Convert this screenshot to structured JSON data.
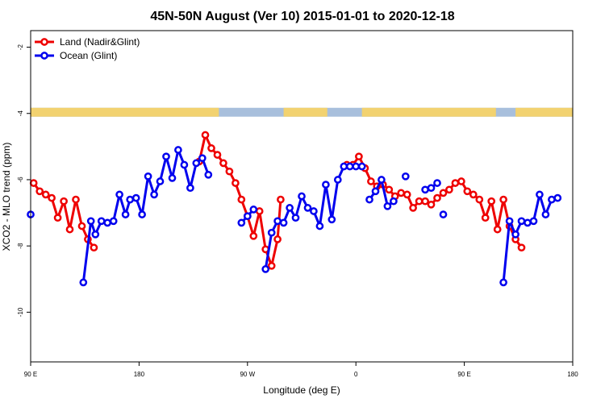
{
  "chart_data": {
    "type": "line",
    "title": "45N-50N August (Ver 10)   2015-01-01 to 2020-12-18",
    "xlabel": "Longitude (deg E)",
    "ylabel": "XCO2 - MLO trend (ppm)",
    "xlim": [
      90,
      450
    ],
    "ylim": [
      -11.5,
      -1.5
    ],
    "x_ticks": [
      {
        "value": 90,
        "label": "90 E"
      },
      {
        "value": 162,
        "label": "180"
      },
      {
        "value": 234,
        "label": "90 W"
      },
      {
        "value": 306,
        "label": "0"
      },
      {
        "value": 378,
        "label": "90 E"
      },
      {
        "value": 450,
        "label": "180"
      }
    ],
    "y_ticks": [
      {
        "value": -2,
        "label": "-2"
      },
      {
        "value": -4,
        "label": "-4"
      },
      {
        "value": -6,
        "label": "-6"
      },
      {
        "value": -8,
        "label": "-8"
      },
      {
        "value": -10,
        "label": "-10"
      }
    ],
    "grid": false,
    "legend_position": "top-left",
    "series": [
      {
        "name": "Land (Nadir&Glint)",
        "color": "#ee0000",
        "segments": [
          [
            [
              92,
              -6.1
            ],
            [
              96,
              -6.35
            ],
            [
              100,
              -6.45
            ],
            [
              104,
              -6.55
            ],
            [
              108,
              -7.15
            ],
            [
              112,
              -6.65
            ],
            [
              116,
              -7.5
            ],
            [
              120,
              -6.6
            ],
            [
              124,
              -7.4
            ],
            [
              128,
              -7.8
            ],
            [
              132,
              -8.05
            ]
          ],
          [
            [
              202,
              -5.45
            ],
            [
              206,
              -4.65
            ],
            [
              210,
              -5.05
            ],
            [
              214,
              -5.25
            ],
            [
              218,
              -5.5
            ],
            [
              222,
              -5.75
            ],
            [
              226,
              -6.1
            ],
            [
              230,
              -6.6
            ],
            [
              234,
              -7.1
            ],
            [
              238,
              -7.7
            ],
            [
              242,
              -6.95
            ],
            [
              246,
              -8.1
            ],
            [
              250,
              -8.6
            ],
            [
              254,
              -7.8
            ],
            [
              256,
              -6.6
            ]
          ],
          [
            [
              300,
              -5.55
            ],
            [
              304,
              -5.55
            ],
            [
              308,
              -5.3
            ],
            [
              312,
              -5.65
            ],
            [
              316,
              -6.05
            ],
            [
              320,
              -6.2
            ],
            [
              324,
              -6.15
            ],
            [
              328,
              -6.3
            ],
            [
              332,
              -6.5
            ],
            [
              336,
              -6.4
            ],
            [
              340,
              -6.45
            ],
            [
              344,
              -6.85
            ],
            [
              348,
              -6.65
            ],
            [
              352,
              -6.65
            ],
            [
              356,
              -6.75
            ],
            [
              360,
              -6.55
            ],
            [
              364,
              -6.4
            ],
            [
              368,
              -6.3
            ],
            [
              372,
              -6.1
            ],
            [
              376,
              -6.05
            ],
            [
              380,
              -6.35
            ],
            [
              384,
              -6.45
            ],
            [
              388,
              -6.6
            ],
            [
              392,
              -7.15
            ],
            [
              396,
              -6.65
            ],
            [
              400,
              -7.5
            ],
            [
              404,
              -6.6
            ],
            [
              408,
              -7.4
            ],
            [
              412,
              -7.8
            ],
            [
              416,
              -8.05
            ]
          ]
        ]
      },
      {
        "name": "Ocean (Glint)",
        "color": "#0000ee",
        "segments": [
          [
            [
              90,
              -7.05
            ]
          ],
          [
            [
              125,
              -9.1
            ],
            [
              130,
              -7.25
            ],
            [
              133,
              -7.65
            ],
            [
              137,
              -7.25
            ],
            [
              141,
              -7.3
            ],
            [
              145,
              -7.25
            ],
            [
              149,
              -6.45
            ],
            [
              153,
              -7.05
            ],
            [
              156,
              -6.6
            ],
            [
              160,
              -6.55
            ],
            [
              164,
              -7.05
            ],
            [
              168,
              -5.9
            ],
            [
              172,
              -6.45
            ],
            [
              176,
              -6.05
            ],
            [
              180,
              -5.3
            ],
            [
              184,
              -5.95
            ],
            [
              188,
              -5.1
            ],
            [
              192,
              -5.55
            ],
            [
              196,
              -6.25
            ],
            [
              200,
              -5.5
            ],
            [
              204,
              -5.35
            ],
            [
              208,
              -5.85
            ]
          ],
          [
            [
              230,
              -7.3
            ],
            [
              234,
              -7.1
            ],
            [
              238,
              -6.9
            ]
          ],
          [
            [
              246,
              -8.7
            ],
            [
              250,
              -7.6
            ],
            [
              254,
              -7.25
            ],
            [
              258,
              -7.3
            ],
            [
              262,
              -6.85
            ],
            [
              266,
              -7.15
            ],
            [
              270,
              -6.5
            ],
            [
              274,
              -6.85
            ],
            [
              278,
              -6.95
            ],
            [
              282,
              -7.4
            ],
            [
              286,
              -6.15
            ],
            [
              290,
              -7.2
            ],
            [
              294,
              -6.0
            ],
            [
              298,
              -5.6
            ],
            [
              302,
              -5.6
            ],
            [
              306,
              -5.6
            ],
            [
              310,
              -5.6
            ]
          ],
          [
            [
              315,
              -6.6
            ],
            [
              319,
              -6.35
            ],
            [
              323,
              -6.0
            ],
            [
              327,
              -6.8
            ],
            [
              331,
              -6.65
            ]
          ],
          [
            [
              339,
              -5.9
            ]
          ],
          [
            [
              352,
              -6.3
            ],
            [
              356,
              -6.25
            ],
            [
              360,
              -6.1
            ]
          ],
          [
            [
              364,
              -7.05
            ]
          ],
          [
            [
              404,
              -9.1
            ],
            [
              408,
              -7.25
            ],
            [
              412,
              -7.65
            ],
            [
              416,
              -7.25
            ],
            [
              420,
              -7.3
            ],
            [
              424,
              -7.25
            ],
            [
              428,
              -6.45
            ],
            [
              432,
              -7.05
            ],
            [
              436,
              -6.6
            ],
            [
              440,
              -6.55
            ]
          ]
        ]
      }
    ],
    "land_ocean_strip": {
      "y": -4,
      "land_color": "#f2d270",
      "ocean_color": "#a8bfdc",
      "land_ranges": [
        [
          90,
          215
        ],
        [
          258,
          287
        ],
        [
          310,
          399
        ],
        [
          412,
          450
        ]
      ]
    }
  }
}
